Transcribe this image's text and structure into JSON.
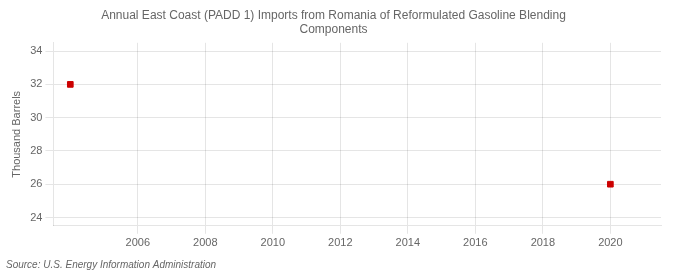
{
  "chart_data": {
    "type": "scatter",
    "title": "Annual East Coast (PADD 1) Imports from Romania of Reformulated Gasoline Blending\nComponents",
    "ylabel": "Thousand Barrels",
    "annotation": "Source: U.S. Energy Information Administration",
    "x": [
      2004,
      2020
    ],
    "values": [
      32,
      26
    ],
    "color": "#cc0000",
    "marker": "square",
    "xlim": [
      2003.5,
      2021.5
    ],
    "ylim": [
      23.5,
      34.5
    ],
    "xticks": [
      2006,
      2008,
      2010,
      2012,
      2014,
      2016,
      2018,
      2020
    ],
    "yticks": [
      24,
      26,
      28,
      30,
      32,
      34
    ],
    "grid": true
  }
}
